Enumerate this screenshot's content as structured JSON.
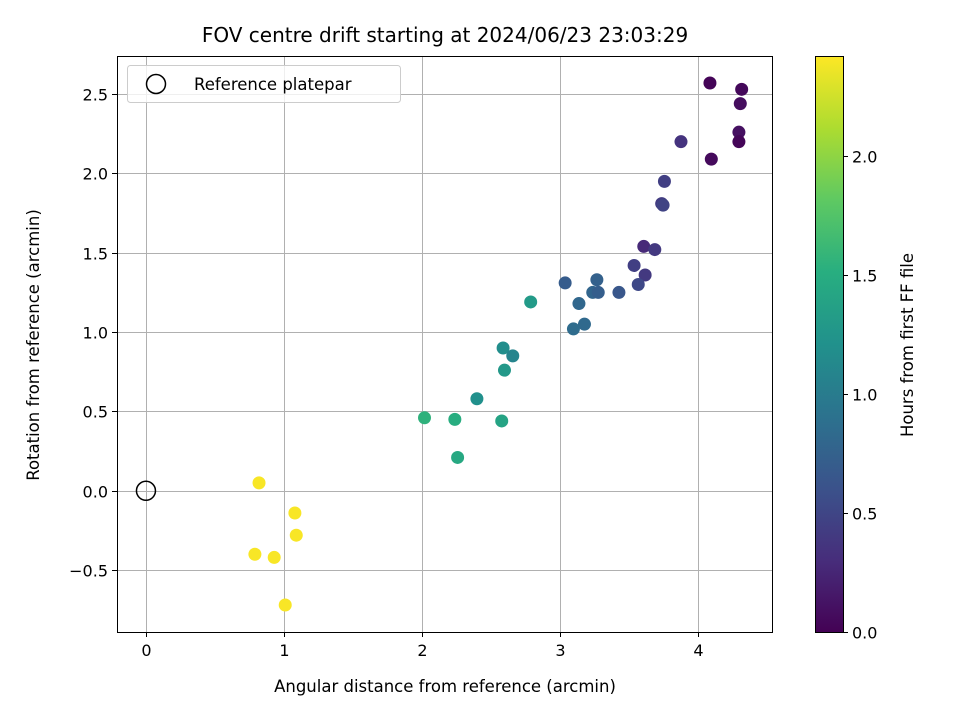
{
  "chart_data": {
    "type": "scatter",
    "title": "FOV centre drift starting at 2024/06/23 23:03:29",
    "xlabel": "Angular distance from reference (arcmin)",
    "ylabel": "Rotation from reference (arcmin)",
    "xlim": [
      -0.21,
      4.54
    ],
    "ylim": [
      -0.89,
      2.74
    ],
    "xticks": [
      0,
      1,
      2,
      3,
      4
    ],
    "yticks": [
      -0.5,
      0.0,
      0.5,
      1.0,
      1.5,
      2.0,
      2.5
    ],
    "ytick_labels": [
      "−0.5",
      "0.0",
      "0.5",
      "1.0",
      "1.5",
      "2.0",
      "2.5"
    ],
    "grid": true,
    "legend": {
      "location": "upper-left",
      "entries": [
        "Reference platepar"
      ]
    },
    "reference_point": {
      "x": 0,
      "y": 0
    },
    "colorbar": {
      "label": "Hours from first FF file",
      "colormap": "viridis",
      "range": [
        0,
        2.42
      ],
      "ticks": [
        0.0,
        0.5,
        1.0,
        1.5,
        2.0
      ],
      "tick_labels": [
        "0.0",
        "0.5",
        "1.0",
        "1.5",
        "2.0"
      ]
    },
    "points": [
      {
        "x": 4.09,
        "y": 2.57,
        "c": 0.02
      },
      {
        "x": 4.32,
        "y": 2.53,
        "c": 0.05
      },
      {
        "x": 4.31,
        "y": 2.44,
        "c": 0.08
      },
      {
        "x": 4.3,
        "y": 2.26,
        "c": 0.1
      },
      {
        "x": 4.3,
        "y": 2.2,
        "c": 0.03
      },
      {
        "x": 4.1,
        "y": 2.09,
        "c": 0.06
      },
      {
        "x": 3.88,
        "y": 2.2,
        "c": 0.35
      },
      {
        "x": 3.76,
        "y": 1.95,
        "c": 0.45
      },
      {
        "x": 3.74,
        "y": 1.81,
        "c": 0.42
      },
      {
        "x": 3.75,
        "y": 1.8,
        "c": 0.48
      },
      {
        "x": 3.61,
        "y": 1.54,
        "c": 0.28
      },
      {
        "x": 3.69,
        "y": 1.52,
        "c": 0.4
      },
      {
        "x": 3.54,
        "y": 1.42,
        "c": 0.45
      },
      {
        "x": 3.62,
        "y": 1.36,
        "c": 0.4
      },
      {
        "x": 3.57,
        "y": 1.3,
        "c": 0.52
      },
      {
        "x": 3.27,
        "y": 1.33,
        "c": 0.75
      },
      {
        "x": 3.04,
        "y": 1.31,
        "c": 0.7
      },
      {
        "x": 3.24,
        "y": 1.25,
        "c": 0.78
      },
      {
        "x": 3.28,
        "y": 1.25,
        "c": 0.72
      },
      {
        "x": 3.43,
        "y": 1.25,
        "c": 0.65
      },
      {
        "x": 3.14,
        "y": 1.18,
        "c": 0.8
      },
      {
        "x": 3.18,
        "y": 1.05,
        "c": 0.82
      },
      {
        "x": 3.1,
        "y": 1.02,
        "c": 0.85
      },
      {
        "x": 2.79,
        "y": 1.19,
        "c": 1.3
      },
      {
        "x": 2.59,
        "y": 0.9,
        "c": 1.18
      },
      {
        "x": 2.66,
        "y": 0.85,
        "c": 1.08
      },
      {
        "x": 2.6,
        "y": 0.76,
        "c": 1.28
      },
      {
        "x": 2.4,
        "y": 0.58,
        "c": 1.2
      },
      {
        "x": 2.02,
        "y": 0.46,
        "c": 1.55
      },
      {
        "x": 2.24,
        "y": 0.45,
        "c": 1.5
      },
      {
        "x": 2.58,
        "y": 0.44,
        "c": 1.4
      },
      {
        "x": 2.26,
        "y": 0.21,
        "c": 1.45
      },
      {
        "x": 0.82,
        "y": 0.05,
        "c": 2.4
      },
      {
        "x": 1.08,
        "y": -0.14,
        "c": 2.4
      },
      {
        "x": 1.09,
        "y": -0.28,
        "c": 2.4
      },
      {
        "x": 0.79,
        "y": -0.4,
        "c": 2.4
      },
      {
        "x": 0.93,
        "y": -0.42,
        "c": 2.4
      },
      {
        "x": 1.01,
        "y": -0.72,
        "c": 2.4
      }
    ]
  }
}
